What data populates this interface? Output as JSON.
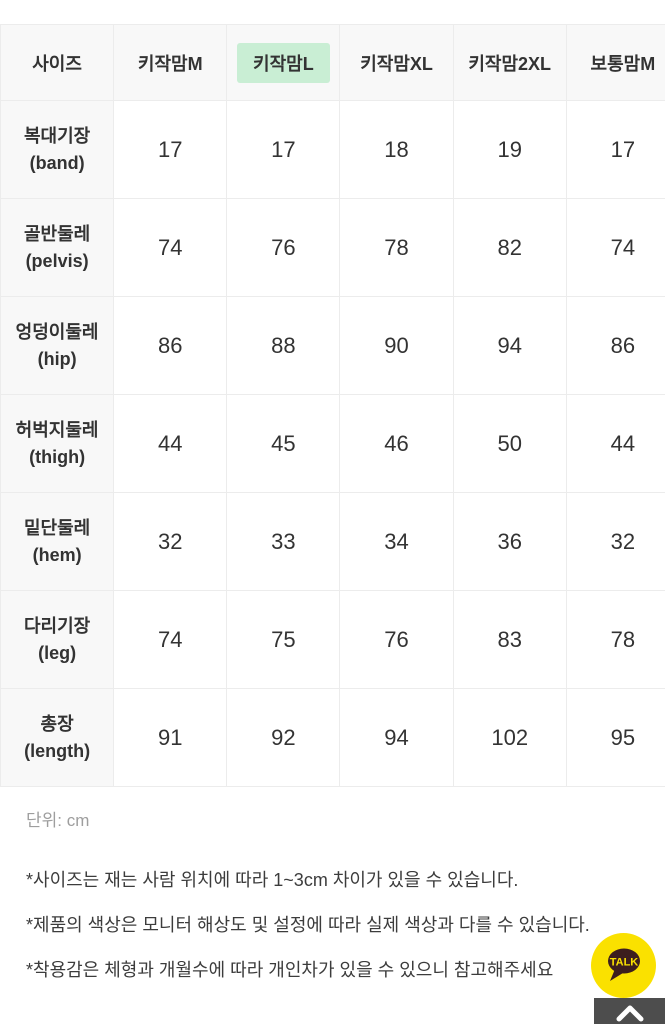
{
  "table": {
    "columns": [
      "사이즈",
      "키작맘M",
      "키작맘L",
      "키작맘XL",
      "키작맘2XL",
      "보통맘M"
    ],
    "highlighted_column": "키작맘L",
    "rows": [
      {
        "label": "복대기장",
        "label_en": "(band)",
        "values": [
          "17",
          "17",
          "18",
          "19",
          "17"
        ]
      },
      {
        "label": "골반둘레",
        "label_en": "(pelvis)",
        "values": [
          "74",
          "76",
          "78",
          "82",
          "74"
        ]
      },
      {
        "label": "엉덩이둘레",
        "label_en": "(hip)",
        "values": [
          "86",
          "88",
          "90",
          "94",
          "86"
        ]
      },
      {
        "label": "허벅지둘레",
        "label_en": "(thigh)",
        "values": [
          "44",
          "45",
          "46",
          "50",
          "44"
        ]
      },
      {
        "label": "밑단둘레",
        "label_en": "(hem)",
        "values": [
          "32",
          "33",
          "34",
          "36",
          "32"
        ]
      },
      {
        "label": "다리기장",
        "label_en": "(leg)",
        "values": [
          "74",
          "75",
          "76",
          "83",
          "78"
        ]
      },
      {
        "label": "총장",
        "label_en": "(length)",
        "values": [
          "91",
          "92",
          "94",
          "102",
          "95"
        ]
      }
    ],
    "unit_note": "단위: cm"
  },
  "notes": [
    "*사이즈는 재는 사람 위치에 따라 1~3cm 차이가 있을 수 있습니다.",
    "*제품의 색상은 모니터 해상도 및 설정에 따라 실제 색상과 다를 수 있습니다.",
    "*착용감은 체형과 개월수에 따라 개인차가 있을 수 있으니 참고해주세요"
  ],
  "floating": {
    "kakao_label": "TALK"
  },
  "colors": {
    "highlight_green": "#c9eed4",
    "header_gray": "#f8f8f8",
    "border_gray": "#ececec",
    "text_dark": "#333333",
    "unit_gray": "#9e9e9e",
    "kakao_yellow": "#fae100",
    "kakao_brown": "#3c1e1e",
    "scroll_btn_gray": "#4d4d4d"
  }
}
